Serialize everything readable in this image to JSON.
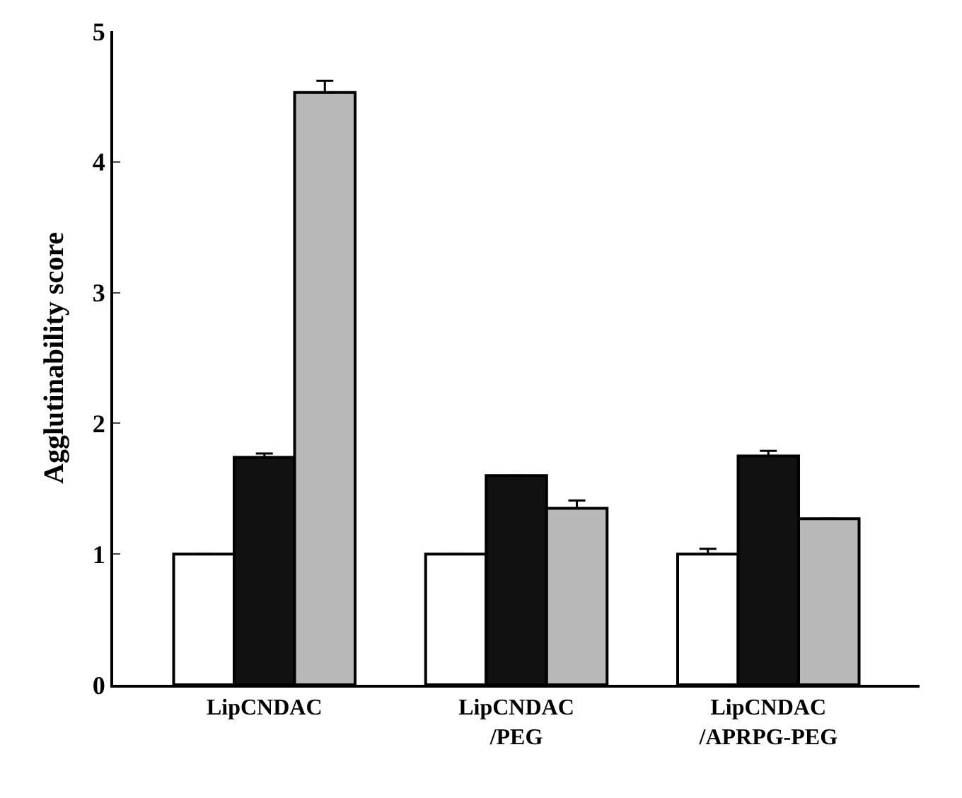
{
  "chart_data": {
    "type": "bar",
    "ylabel": "Agglutinability score",
    "categories": [
      "LipCNDAC",
      "LipCNDAC\n/PEG",
      "LipCNDAC\n/APRPG-PEG"
    ],
    "series": [
      {
        "color": "#ffffff",
        "values": [
          1.0,
          1.0,
          1.0
        ],
        "errors": [
          null,
          null,
          0.04
        ]
      },
      {
        "color": "#111111",
        "values": [
          1.74,
          1.6,
          1.75
        ],
        "errors": [
          0.03,
          null,
          0.04
        ]
      },
      {
        "color": "#b8b8b8",
        "values": [
          4.53,
          1.35,
          1.27
        ],
        "errors": [
          0.09,
          0.06,
          null
        ]
      }
    ],
    "ylim": [
      0,
      5
    ],
    "yticks": [
      0,
      1,
      2,
      3,
      4,
      5
    ]
  }
}
